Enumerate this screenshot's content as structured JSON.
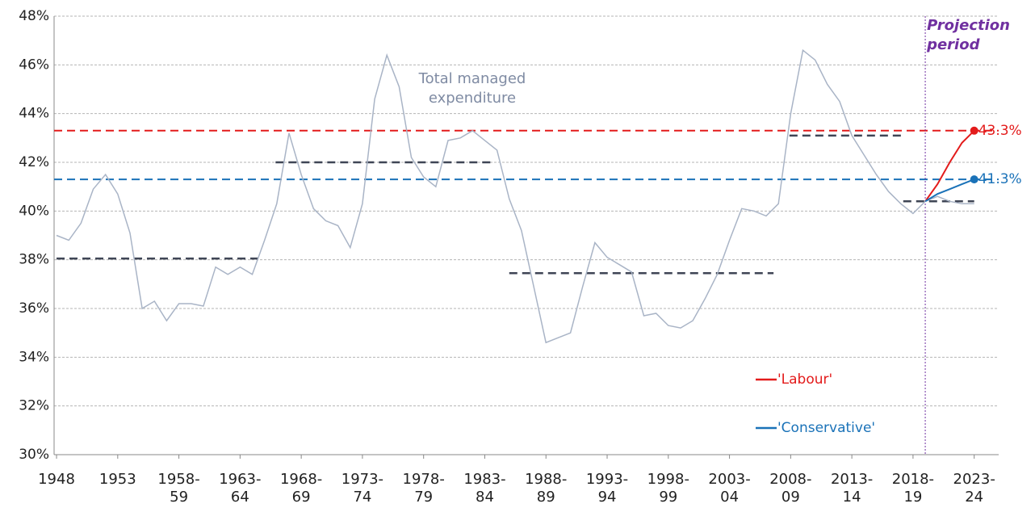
{
  "chart_data": {
    "type": "line",
    "x": [
      1948,
      1949,
      1950,
      1951,
      1952,
      1953,
      1954,
      1955,
      1956,
      1957,
      1958,
      1959,
      1960,
      1961,
      1962,
      1963,
      1964,
      1965,
      1966,
      1967,
      1968,
      1969,
      1970,
      1971,
      1972,
      1973,
      1974,
      1975,
      1976,
      1977,
      1978,
      1979,
      1980,
      1981,
      1982,
      1983,
      1984,
      1985,
      1986,
      1987,
      1988,
      1989,
      1990,
      1991,
      1992,
      1993,
      1994,
      1995,
      1996,
      1997,
      1998,
      1999,
      2000,
      2001,
      2002,
      2003,
      2004,
      2005,
      2006,
      2007,
      2008,
      2009,
      2010,
      2011,
      2012,
      2013,
      2014,
      2015,
      2016,
      2017,
      2018,
      2019,
      2020,
      2021,
      2022,
      2023
    ],
    "xlim": [
      1947.8,
      2025.0
    ],
    "xticks": [
      1948,
      1953,
      {
        "value": 1958,
        "label": "1958-59"
      },
      {
        "value": 1963,
        "label": "1963-64"
      },
      {
        "value": 1968,
        "label": "1968-69"
      },
      {
        "value": 1973,
        "label": "1973-74"
      },
      {
        "value": 1978,
        "label": "1978-79"
      },
      {
        "value": 1983,
        "label": "1983-84"
      },
      {
        "value": 1988,
        "label": "1988-89"
      },
      {
        "value": 1993,
        "label": "1993-94"
      },
      {
        "value": 1998,
        "label": "1998-99"
      },
      {
        "value": 2003,
        "label": "2003-04"
      },
      {
        "value": 2008,
        "label": "2008-09"
      },
      {
        "value": 2013,
        "label": "2013-14"
      },
      {
        "value": 2018,
        "label": "2018-19"
      },
      {
        "value": 2023,
        "label": "2023-24"
      }
    ],
    "ylim": [
      30,
      48
    ],
    "yticks": [
      {
        "value": 30,
        "label": "30%"
      },
      {
        "value": 32,
        "label": "32%"
      },
      {
        "value": 34,
        "label": "34%"
      },
      {
        "value": 36,
        "label": "36%"
      },
      {
        "value": 38,
        "label": "38%"
      },
      {
        "value": 40,
        "label": "40%"
      },
      {
        "value": 42,
        "label": "42%"
      },
      {
        "value": 44,
        "label": "44%"
      },
      {
        "value": 46,
        "label": "46%"
      },
      {
        "value": 48,
        "label": "48%"
      }
    ],
    "grid": true,
    "legend_position": "lower right",
    "series": [
      {
        "name": "Total managed expenditure",
        "color": "#a9b4c6",
        "legend": false,
        "values": [
          39.0,
          38.8,
          39.5,
          40.9,
          41.5,
          40.7,
          39.1,
          36.0,
          36.3,
          35.5,
          36.2,
          36.2,
          36.1,
          37.7,
          37.4,
          37.7,
          37.4,
          38.8,
          40.3,
          43.2,
          41.5,
          40.1,
          39.6,
          39.4,
          38.5,
          40.3,
          44.6,
          46.4,
          45.1,
          42.2,
          41.4,
          41.0,
          42.9,
          43.0,
          43.3,
          42.9,
          42.5,
          40.5,
          39.2,
          36.9,
          34.6,
          34.8,
          35.0,
          36.9,
          38.7,
          38.1,
          37.8,
          37.5,
          35.7,
          35.8,
          35.3,
          35.2,
          35.5,
          36.4,
          37.4,
          38.8,
          40.1,
          40.0,
          39.8,
          40.3,
          44.0,
          46.6,
          46.2,
          45.2,
          44.5,
          43.1,
          42.3,
          41.5,
          40.8,
          40.3,
          39.9,
          40.4,
          40.6,
          40.4,
          40.3,
          40.3
        ]
      },
      {
        "name": "'Labour'",
        "color": "#e31b1b",
        "legend": true,
        "values": [
          null,
          null,
          null,
          null,
          null,
          null,
          null,
          null,
          null,
          null,
          null,
          null,
          null,
          null,
          null,
          null,
          null,
          null,
          null,
          null,
          null,
          null,
          null,
          null,
          null,
          null,
          null,
          null,
          null,
          null,
          null,
          null,
          null,
          null,
          null,
          null,
          null,
          null,
          null,
          null,
          null,
          null,
          null,
          null,
          null,
          null,
          null,
          null,
          null,
          null,
          null,
          null,
          null,
          null,
          null,
          null,
          null,
          null,
          null,
          null,
          null,
          null,
          null,
          null,
          null,
          null,
          null,
          null,
          null,
          null,
          null,
          40.4,
          41.1,
          42.0,
          42.8,
          43.3
        ],
        "value_labels": [
          null,
          null,
          null,
          null,
          null,
          null,
          null,
          null,
          null,
          null,
          null,
          null,
          null,
          null,
          null,
          null,
          null,
          null,
          null,
          null,
          null,
          null,
          null,
          null,
          null,
          null,
          null,
          null,
          null,
          null,
          null,
          null,
          null,
          null,
          null,
          null,
          null,
          null,
          null,
          null,
          null,
          null,
          null,
          null,
          null,
          null,
          null,
          null,
          null,
          null,
          null,
          null,
          null,
          null,
          null,
          null,
          null,
          null,
          null,
          null,
          null,
          null,
          null,
          null,
          null,
          null,
          null,
          null,
          null,
          null,
          null,
          null,
          null,
          null,
          null,
          "43.3%"
        ]
      },
      {
        "name": "'Conservative'",
        "color": "#1a72b8",
        "legend": true,
        "values": [
          null,
          null,
          null,
          null,
          null,
          null,
          null,
          null,
          null,
          null,
          null,
          null,
          null,
          null,
          null,
          null,
          null,
          null,
          null,
          null,
          null,
          null,
          null,
          null,
          null,
          null,
          null,
          null,
          null,
          null,
          null,
          null,
          null,
          null,
          null,
          null,
          null,
          null,
          null,
          null,
          null,
          null,
          null,
          null,
          null,
          null,
          null,
          null,
          null,
          null,
          null,
          null,
          null,
          null,
          null,
          null,
          null,
          null,
          null,
          null,
          null,
          null,
          null,
          null,
          null,
          null,
          null,
          null,
          null,
          null,
          null,
          40.4,
          40.7,
          40.9,
          41.1,
          41.3
        ],
        "value_labels": [
          null,
          null,
          null,
          null,
          null,
          null,
          null,
          null,
          null,
          null,
          null,
          null,
          null,
          null,
          null,
          null,
          null,
          null,
          null,
          null,
          null,
          null,
          null,
          null,
          null,
          null,
          null,
          null,
          null,
          null,
          null,
          null,
          null,
          null,
          null,
          null,
          null,
          null,
          null,
          null,
          null,
          null,
          null,
          null,
          null,
          null,
          null,
          null,
          null,
          null,
          null,
          null,
          null,
          null,
          null,
          null,
          null,
          null,
          null,
          null,
          null,
          null,
          null,
          null,
          null,
          null,
          null,
          null,
          null,
          null,
          null,
          null,
          null,
          null,
          null,
          "41.3%"
        ]
      }
    ],
    "reference_lines": [
      {
        "value": 43.3,
        "color": "#e31b1b"
      },
      {
        "value": 41.3,
        "color": "#1a72b8"
      }
    ],
    "period_averages": {
      "color": "#3f4555",
      "segments": [
        {
          "x": [
            1948,
            1964.6
          ],
          "value": 38.05
        },
        {
          "x": [
            1965.9,
            1983.8
          ],
          "value": 42.0
        },
        {
          "x": [
            1985.0,
            2006.6
          ],
          "value": 37.45
        },
        {
          "x": [
            2007.9,
            2017.3
          ],
          "value": 43.1
        },
        {
          "x": [
            2017.2,
            2023.0
          ],
          "value": 40.4
        }
      ]
    },
    "projection": {
      "x": 2019,
      "label": "Projection period",
      "color": "#7030a0"
    }
  }
}
